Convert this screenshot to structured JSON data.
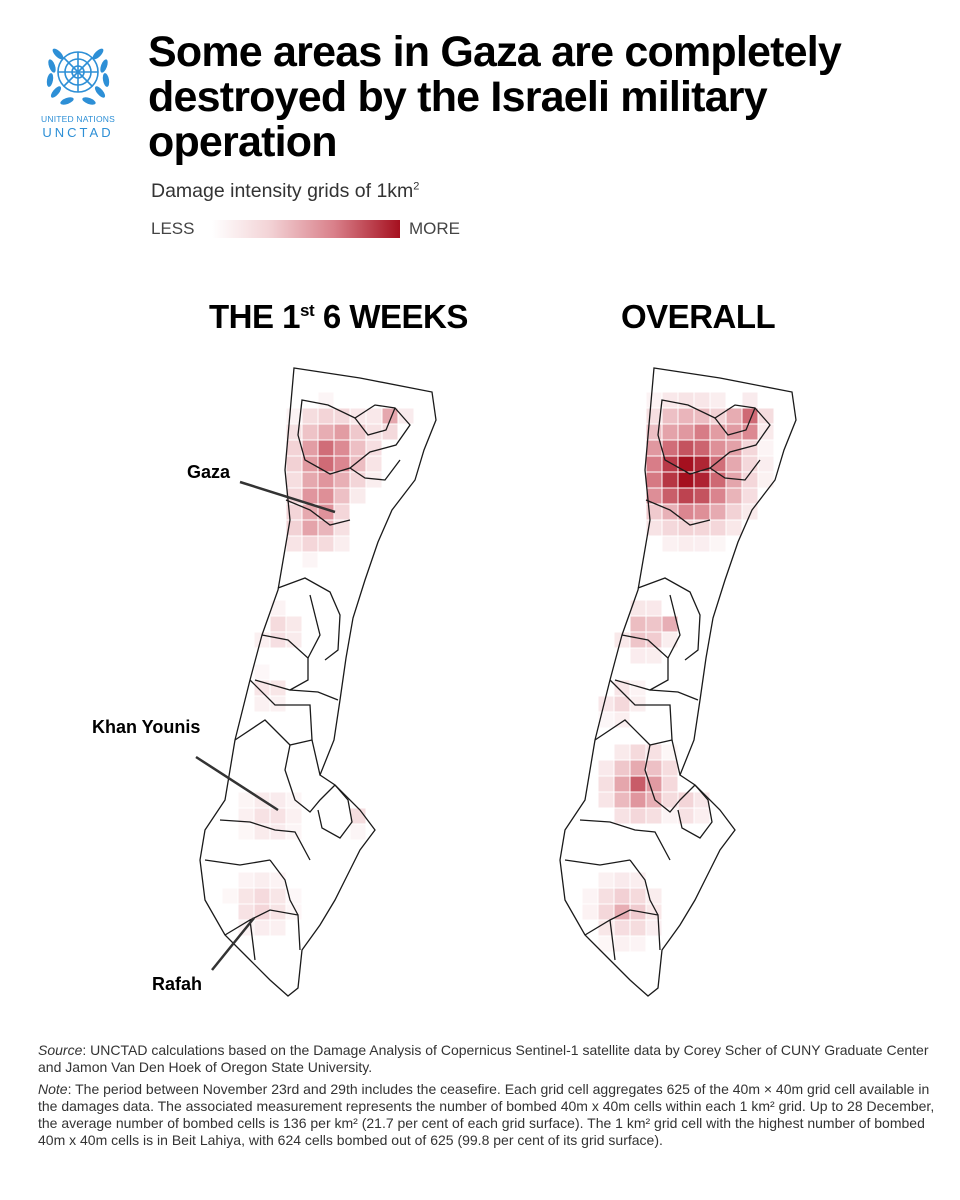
{
  "logo": {
    "org_name": "UNITED NATIONS",
    "acronym": "UNCTAD"
  },
  "title": "Some areas in Gaza are completely destroyed by the Israeli military operation",
  "subtitle": {
    "text": "Damage intensity grids of 1km",
    "superscript": "2"
  },
  "legend": {
    "less": "LESS",
    "more": "MORE",
    "color_low": "#ffffff",
    "color_high": "#a5101f"
  },
  "panels": [
    {
      "title_prefix": "THE 1",
      "title_sup": "st",
      "title_suffix": " 6 WEEKS"
    },
    {
      "title": "OVERALL"
    }
  ],
  "labels": {
    "gaza": "Gaza",
    "khan_younis": "Khan Younis",
    "rafah": "Rafah"
  },
  "footer": {
    "source_label": "Source",
    "source_text": ": UNCTAD calculations based on the Damage Analysis of Copernicus Sentinel-1 satellite data by Corey Scher of CUNY Graduate Center and Jamon Van Den Hoek of Oregon State University.",
    "note_label": "Note",
    "note_text": ": The period between November 23rd and 29th includes the ceasefire. Each grid cell aggregates 625 of the 40m × 40m grid cell available in the damages data. The associated measurement represents the number of bombed 40m x 40m cells within each 1 km² grid. Up to 28 December, the average number of bombed cells is 136 per km² (21.7 per cent of each grid surface). The 1 km² grid cell with the highest number of bombed 40m x 40m cells is in Beit Lahiya, with 624 cells bombed out of 625 (99.8 per cent of its grid surface)."
  }
}
